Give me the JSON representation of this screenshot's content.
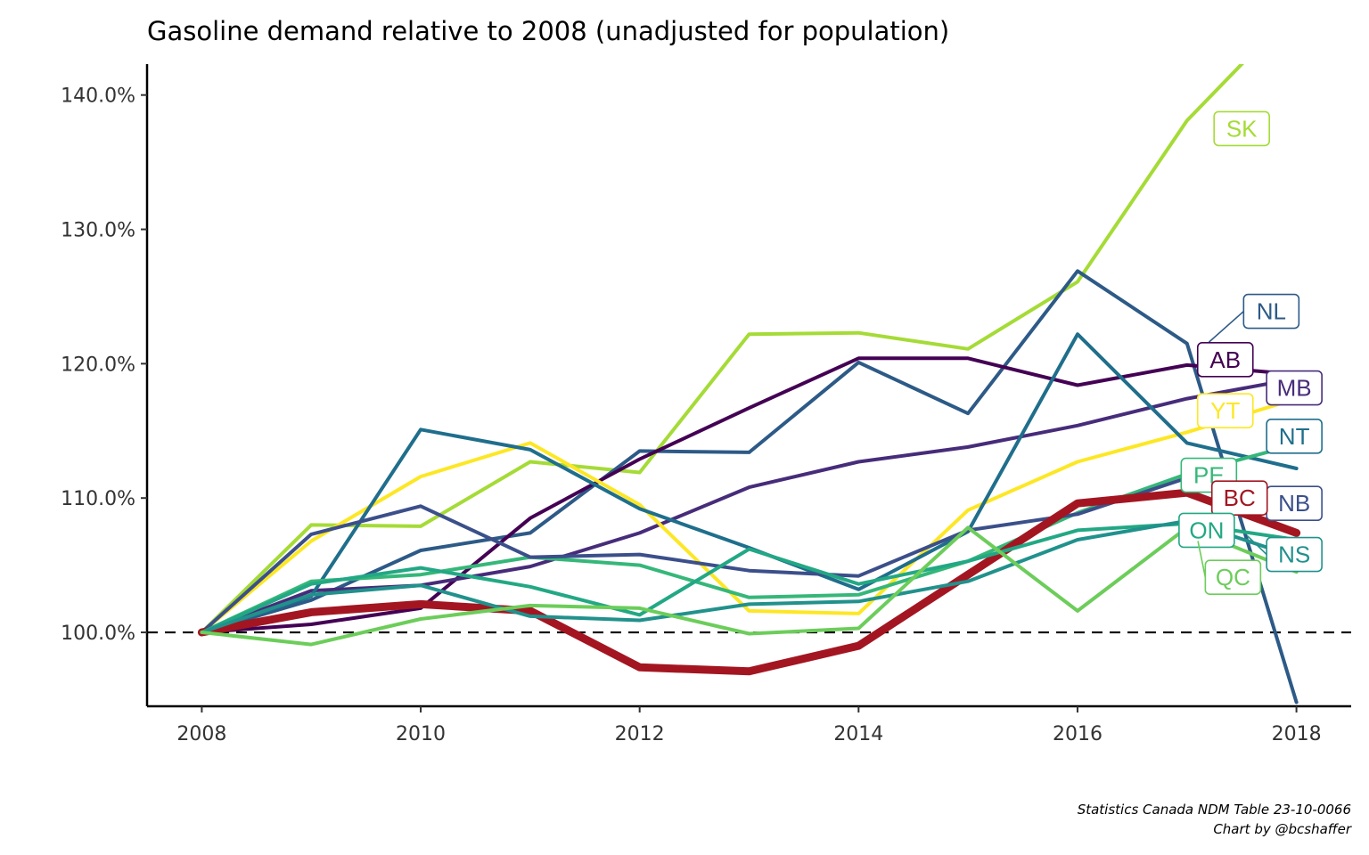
{
  "chart_data": {
    "type": "line",
    "title": "Gasoline demand relative to 2008 (unadjusted for population)",
    "xlabel": "",
    "ylabel": "",
    "x": [
      2008,
      2009,
      2010,
      2011,
      2012,
      2013,
      2014,
      2015,
      2016,
      2017,
      2018
    ],
    "xlim": [
      2007.5,
      2018.5
    ],
    "ylim": [
      94.5,
      142.3
    ],
    "x_ticks": [
      2008,
      2010,
      2012,
      2014,
      2016,
      2018
    ],
    "x_tick_labels": [
      "2008",
      "2010",
      "2012",
      "2014",
      "2016",
      "2018"
    ],
    "y_ticks": [
      100,
      110,
      120,
      130,
      140
    ],
    "y_tick_labels": [
      "100.0%",
      "110.0%",
      "120.0%",
      "130.0%",
      "140.0%"
    ],
    "reference_line": 100,
    "grid": false,
    "legend": "none (direct labels)",
    "series": [
      {
        "name": "SK",
        "color": "#a5db36",
        "values": [
          100.0,
          108.0,
          107.9,
          112.7,
          111.9,
          122.2,
          122.3,
          121.1,
          126.1,
          138.1,
          146.5
        ]
      },
      {
        "name": "NL",
        "color": "#2d5a87",
        "values": [
          100.0,
          102.4,
          106.1,
          107.4,
          113.5,
          113.4,
          120.1,
          116.3,
          126.9,
          121.5,
          94.8
        ]
      },
      {
        "name": "AB",
        "color": "#440154",
        "values": [
          100.0,
          100.6,
          101.8,
          108.5,
          112.9,
          116.7,
          120.4,
          120.4,
          118.4,
          119.9,
          119.2
        ]
      },
      {
        "name": "MB",
        "color": "#472c7a",
        "values": [
          100.0,
          103.1,
          103.5,
          104.9,
          107.4,
          110.8,
          112.7,
          113.8,
          115.4,
          117.4,
          118.9
        ]
      },
      {
        "name": "YT",
        "color": "#fde725",
        "values": [
          100.0,
          106.8,
          111.6,
          114.1,
          109.5,
          101.6,
          101.4,
          109.1,
          112.7,
          114.9,
          117.4
        ]
      },
      {
        "name": "NT",
        "color": "#1f6e8c",
        "values": [
          100.0,
          102.7,
          115.1,
          113.6,
          109.2,
          106.3,
          103.2,
          107.5,
          122.2,
          114.1,
          112.2
        ]
      },
      {
        "name": "PE",
        "color": "#35b779",
        "values": [
          100.0,
          103.8,
          104.3,
          105.6,
          105.0,
          102.6,
          102.8,
          105.3,
          108.9,
          111.8,
          114.0
        ]
      },
      {
        "name": "NB",
        "color": "#3b4f8a",
        "values": [
          100.0,
          107.3,
          109.4,
          105.6,
          105.8,
          104.6,
          104.2,
          107.6,
          108.8,
          111.5,
          109.8
        ]
      },
      {
        "name": "BC",
        "color": "#a31621",
        "values": [
          100.0,
          101.5,
          102.1,
          101.6,
          97.4,
          97.1,
          99.0,
          104.3,
          109.6,
          110.4,
          107.4
        ]
      },
      {
        "name": "ON",
        "color": "#22a884",
        "values": [
          100.0,
          103.6,
          104.8,
          103.4,
          101.3,
          106.2,
          103.6,
          105.3,
          107.6,
          108.1,
          106.9
        ]
      },
      {
        "name": "NS",
        "color": "#21918c",
        "values": [
          100.0,
          102.8,
          103.5,
          101.2,
          100.9,
          102.1,
          102.3,
          103.8,
          106.9,
          108.3,
          105.6
        ]
      },
      {
        "name": "QC",
        "color": "#6ccd5a",
        "values": [
          100.0,
          99.1,
          101.0,
          102.0,
          101.8,
          99.9,
          100.3,
          107.8,
          101.6,
          107.8,
          104.5
        ]
      }
    ],
    "labels": [
      {
        "name": "SK",
        "x": 2017.5,
        "y": 137.5,
        "lx": 2017.35,
        "ly": 137.5
      },
      {
        "name": "NL",
        "x": 2017.77,
        "y": 123.9,
        "lx": 2017.2,
        "ly": 121.6
      },
      {
        "name": "AB",
        "x": 2017.35,
        "y": 120.3,
        "lx": 2017.35,
        "ly": 120.0
      },
      {
        "name": "MB",
        "x": 2017.98,
        "y": 118.2,
        "lx": 2017.8,
        "ly": 118.0
      },
      {
        "name": "YT",
        "x": 2017.35,
        "y": 116.5,
        "lx": 2017.35,
        "ly": 116.0
      },
      {
        "name": "NT",
        "x": 2017.98,
        "y": 114.6,
        "lx": 2017.98,
        "ly": 114.6
      },
      {
        "name": "PE",
        "x": 2017.2,
        "y": 111.7,
        "lx": 2017.2,
        "ly": 111.7
      },
      {
        "name": "NB",
        "x": 2017.98,
        "y": 109.6,
        "lx": 2017.98,
        "ly": 109.6
      },
      {
        "name": "BC",
        "x": 2017.48,
        "y": 110.0,
        "lx": 2017.48,
        "ly": 110.0
      },
      {
        "name": "ON",
        "x": 2017.18,
        "y": 107.6,
        "lx": 2017.18,
        "ly": 107.6
      },
      {
        "name": "NS",
        "x": 2017.98,
        "y": 105.8,
        "lx": 2017.55,
        "ly": 107.2
      },
      {
        "name": "QC",
        "x": 2017.42,
        "y": 104.1,
        "lx": 2017.1,
        "ly": 106.8
      }
    ],
    "caption_lines": [
      "Statistics Canada NDM Table 23-10-0066",
      "Chart by @bcshaffer"
    ]
  }
}
